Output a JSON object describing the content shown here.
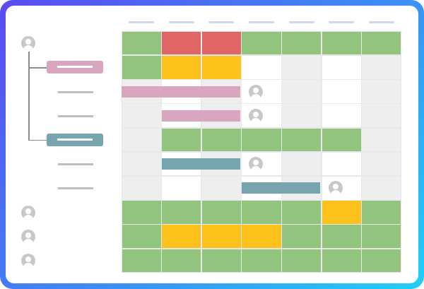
{
  "colors": {
    "frame_gradient": [
      "#5b4bf0",
      "#3c8df5",
      "#1fd0f5"
    ],
    "green": "#93c47d",
    "red": "#e06666",
    "yellow": "#fcc21b",
    "white": "#ffffff",
    "gray": "#eeeeee",
    "pink": "#d8a7bf",
    "teal": "#76a5af",
    "avatar": "#c8c8c8",
    "column_header": "#cfd6ee"
  },
  "column_count": 7,
  "tree": {
    "top_avatar": {
      "icon": "user-avatar-icon"
    },
    "groups": [
      {
        "name": "group-1",
        "color": "pink",
        "task_count": 2
      },
      {
        "name": "group-2",
        "color": "teal",
        "task_count": 2
      }
    ]
  },
  "rows": [
    {
      "kind": "person",
      "cells": [
        "green",
        "red",
        "red",
        "green",
        "green",
        "green",
        "green"
      ]
    },
    {
      "kind": "group",
      "cells": [
        "green",
        "yellow",
        "yellow",
        "white",
        "gray",
        "white",
        "gray"
      ]
    },
    {
      "kind": "task",
      "cells": [
        "gray",
        "white",
        "gray",
        "white",
        "gray",
        "white",
        "gray"
      ],
      "bar": {
        "color": "pink",
        "start": 0,
        "end": 3
      },
      "assignee_col": 3
    },
    {
      "kind": "task",
      "cells": [
        "gray",
        "white",
        "gray",
        "white",
        "gray",
        "white",
        "gray"
      ],
      "bar": {
        "color": "pink",
        "start": 1,
        "end": 3
      },
      "assignee_col": 3
    },
    {
      "kind": "group",
      "cells": [
        "gray",
        "green",
        "green",
        "green",
        "green",
        "green",
        "gray"
      ]
    },
    {
      "kind": "task",
      "cells": [
        "gray",
        "white",
        "gray",
        "white",
        "gray",
        "white",
        "gray"
      ],
      "bar": {
        "color": "teal",
        "start": 1,
        "end": 3
      },
      "assignee_col": 3
    },
    {
      "kind": "task",
      "cells": [
        "gray",
        "white",
        "gray",
        "white",
        "gray",
        "white",
        "gray"
      ],
      "bar": {
        "color": "teal",
        "start": 3,
        "end": 5
      },
      "assignee_col": 5
    },
    {
      "kind": "person",
      "cells": [
        "green",
        "green",
        "green",
        "green",
        "green",
        "yellow",
        "green"
      ]
    },
    {
      "kind": "person",
      "cells": [
        "green",
        "yellow",
        "yellow",
        "yellow",
        "green",
        "green",
        "green"
      ]
    },
    {
      "kind": "person",
      "cells": [
        "green",
        "green",
        "green",
        "green",
        "green",
        "green",
        "green"
      ]
    }
  ]
}
